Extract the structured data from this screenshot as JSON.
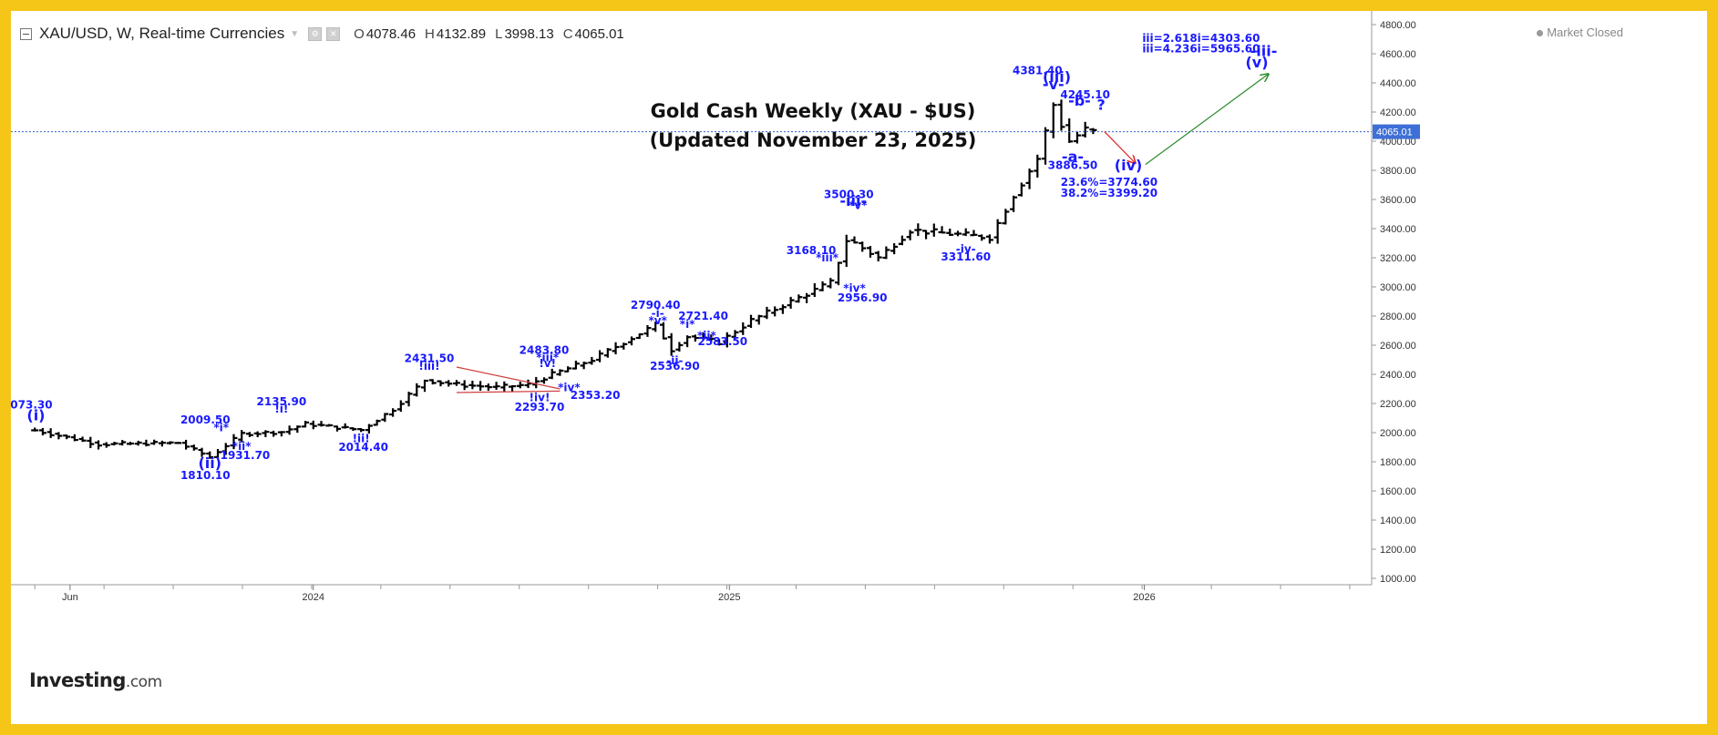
{
  "legend": {
    "symbol": "XAU/USD, W, Real-time Currencies",
    "open_label": "O",
    "open": "4078.46",
    "high_label": "H",
    "high": "4132.89",
    "low_label": "L",
    "low": "3998.13",
    "close_label": "C",
    "close": "4065.01"
  },
  "market_status": "Market Closed",
  "title_line1": "Gold Cash Weekly (XAU - $US)",
  "title_line2": "(Updated November 23, 2025)",
  "logo": {
    "main": "Investing",
    "suffix": ".com"
  },
  "colors": {
    "background": "#f5c518",
    "bars": "#000000",
    "annotations": "#1a1aff",
    "price_line": "#3366cc",
    "down_arrow": "#e02020",
    "up_arrow": "#2a8a2a"
  },
  "chart_data": {
    "type": "ohlc",
    "timeframe": "weekly",
    "ylim": [
      1000,
      4800
    ],
    "y_ticks": [
      "1000.00",
      "1200.00",
      "1400.00",
      "1600.00",
      "1800.00",
      "2000.00",
      "2200.00",
      "2400.00",
      "2600.00",
      "2800.00",
      "3000.00",
      "3200.00",
      "3400.00",
      "3600.00",
      "3800.00",
      "4000.00",
      "4200.00",
      "4400.00",
      "4600.00",
      "4800.00"
    ],
    "x_labels": [
      {
        "label": "Jun",
        "date": "2023-06-01"
      },
      {
        "label": "2024",
        "date": "2024-01-01"
      },
      {
        "label": "2025",
        "date": "2025-01-01"
      },
      {
        "label": "2026",
        "date": "2026-01-01"
      }
    ],
    "x_range": [
      "2023-04-10",
      "2026-07-20"
    ],
    "last_price": "4065.01",
    "key_points": [
      {
        "date": "2023-05-01",
        "close": 2016
      },
      {
        "date": "2023-06-26",
        "close": 1920
      },
      {
        "date": "2023-09-04",
        "close": 1930
      },
      {
        "date": "2023-10-02",
        "close": 1832
      },
      {
        "date": "2023-10-30",
        "close": 1992
      },
      {
        "date": "2023-12-04",
        "close": 2005
      },
      {
        "date": "2023-12-25",
        "close": 2060
      },
      {
        "date": "2024-02-12",
        "close": 2018
      },
      {
        "date": "2024-03-11",
        "close": 2160
      },
      {
        "date": "2024-04-08",
        "close": 2360
      },
      {
        "date": "2024-05-06",
        "close": 2330
      },
      {
        "date": "2024-06-10",
        "close": 2310
      },
      {
        "date": "2024-07-08",
        "close": 2330
      },
      {
        "date": "2024-07-29",
        "close": 2400
      },
      {
        "date": "2024-09-02",
        "close": 2500
      },
      {
        "date": "2024-10-28",
        "close": 2740
      },
      {
        "date": "2024-11-11",
        "close": 2570
      },
      {
        "date": "2024-11-25",
        "close": 2660
      },
      {
        "date": "2024-12-23",
        "close": 2620
      },
      {
        "date": "2025-01-20",
        "close": 2770
      },
      {
        "date": "2025-02-24",
        "close": 2900
      },
      {
        "date": "2025-03-31",
        "close": 3030
      },
      {
        "date": "2025-04-14",
        "close": 3320
      },
      {
        "date": "2025-04-21",
        "close": 3300
      },
      {
        "date": "2025-05-12",
        "close": 3200
      },
      {
        "date": "2025-06-09",
        "close": 3390
      },
      {
        "date": "2025-08-04",
        "close": 3350
      },
      {
        "date": "2025-08-18",
        "close": 3340
      },
      {
        "date": "2025-09-08",
        "close": 3630
      },
      {
        "date": "2025-09-29",
        "close": 3880
      },
      {
        "date": "2025-10-13",
        "close": 4250
      },
      {
        "date": "2025-10-20",
        "close": 4110
      },
      {
        "date": "2025-10-27",
        "close": 4000
      },
      {
        "date": "2025-11-10",
        "close": 4080
      },
      {
        "date": "2025-11-17",
        "close": 4065
      }
    ],
    "annotations": [
      {
        "text": "073.30",
        "date": "2023-04-28",
        "price": 2165
      },
      {
        "text": "(i)",
        "date": "2023-05-02",
        "price": 2085
      },
      {
        "text": "(ii)",
        "date": "2023-10-02",
        "price": 1755
      },
      {
        "text": "1810.10",
        "date": "2023-09-28",
        "price": 1680
      },
      {
        "text": "2009.50",
        "date": "2023-09-28",
        "price": 2062
      },
      {
        "text": "*i*",
        "date": "2023-10-12",
        "price": 2010
      },
      {
        "text": "*ii*",
        "date": "2023-10-30",
        "price": 1880
      },
      {
        "text": "1931.70",
        "date": "2023-11-02",
        "price": 1820
      },
      {
        "text": "2135.90",
        "date": "2023-12-04",
        "price": 2188
      },
      {
        "text": "!i!",
        "date": "2023-12-04",
        "price": 2138
      },
      {
        "text": "!ii!",
        "date": "2024-02-12",
        "price": 1935
      },
      {
        "text": "2014.40",
        "date": "2024-02-14",
        "price": 1875
      },
      {
        "text": "2431.50",
        "date": "2024-04-12",
        "price": 2485
      },
      {
        "text": "!iii!",
        "date": "2024-04-12",
        "price": 2430
      },
      {
        "text": "2483.80",
        "date": "2024-07-22",
        "price": 2540
      },
      {
        "text": "*iii*",
        "date": "2024-07-25",
        "price": 2490
      },
      {
        "text": "!v!",
        "date": "2024-07-25",
        "price": 2450
      },
      {
        "text": "!iv!",
        "date": "2024-07-18",
        "price": 2215
      },
      {
        "text": "2293.70",
        "date": "2024-07-18",
        "price": 2150
      },
      {
        "text": "*iv*",
        "date": "2024-08-13",
        "price": 2285
      },
      {
        "text": "2353.20",
        "date": "2024-09-05",
        "price": 2230
      },
      {
        "text": "2790.40",
        "date": "2024-10-28",
        "price": 2850
      },
      {
        "text": "-i-",
        "date": "2024-10-30",
        "price": 2795
      },
      {
        "text": "*v*",
        "date": "2024-10-30",
        "price": 2745
      },
      {
        "text": "-ii-",
        "date": "2024-11-14",
        "price": 2470
      },
      {
        "text": "2536.90",
        "date": "2024-11-14",
        "price": 2430
      },
      {
        "text": "2721.40",
        "date": "2024-12-09",
        "price": 2775
      },
      {
        "text": "*i*",
        "date": "2024-11-25",
        "price": 2720
      },
      {
        "text": "*ii*",
        "date": "2024-12-12",
        "price": 2640
      },
      {
        "text": "2583.50",
        "date": "2024-12-26",
        "price": 2600
      },
      {
        "text": "3168.10",
        "date": "2025-03-14",
        "price": 3225
      },
      {
        "text": "*iii*",
        "date": "2025-03-28",
        "price": 3175
      },
      {
        "text": "*iv*",
        "date": "2025-04-21",
        "price": 2965
      },
      {
        "text": "2956.90",
        "date": "2025-04-28",
        "price": 2900
      },
      {
        "text": "3500.30",
        "date": "2025-04-16",
        "price": 3610
      },
      {
        "text": "-iii-",
        "date": "2025-04-20",
        "price": 3555
      },
      {
        "text": "*v*",
        "date": "2025-04-24",
        "price": 3535
      },
      {
        "text": "-iv-",
        "date": "2025-07-28",
        "price": 3235
      },
      {
        "text": "3311.60",
        "date": "2025-07-28",
        "price": 3180
      },
      {
        "text": "4381.40",
        "date": "2025-09-29",
        "price": 4460
      },
      {
        "text": "(iii)",
        "date": "2025-10-16",
        "price": 4405
      },
      {
        "text": "-v-",
        "date": "2025-10-13",
        "price": 4355
      },
      {
        "text": "4245.10",
        "date": "2025-11-10",
        "price": 4295
      },
      {
        "text": "-b-",
        "date": "2025-11-05",
        "price": 4245
      },
      {
        "text": "?",
        "date": "2025-11-24",
        "price": 4215
      },
      {
        "text": "-a-",
        "date": "2025-10-30",
        "price": 3860
      },
      {
        "text": "3886.50",
        "date": "2025-10-30",
        "price": 3810
      },
      {
        "text": "(iv)",
        "date": "2025-12-18",
        "price": 3800
      },
      {
        "text": "23.6%=3774.60",
        "date": "2025-12-01",
        "price": 3695
      },
      {
        "text": "38.2%=3399.20",
        "date": "2025-12-01",
        "price": 3620
      },
      {
        "text": "iii=2.618i=4303.60",
        "date": "2026-02-20",
        "price": 4680
      },
      {
        "text": "iii=4.236i=5965.60",
        "date": "2026-02-20",
        "price": 4610
      },
      {
        "text": "-iii-",
        "date": "2026-04-16",
        "price": 4585
      },
      {
        "text": "(v)",
        "date": "2026-04-10",
        "price": 4505
      }
    ]
  }
}
